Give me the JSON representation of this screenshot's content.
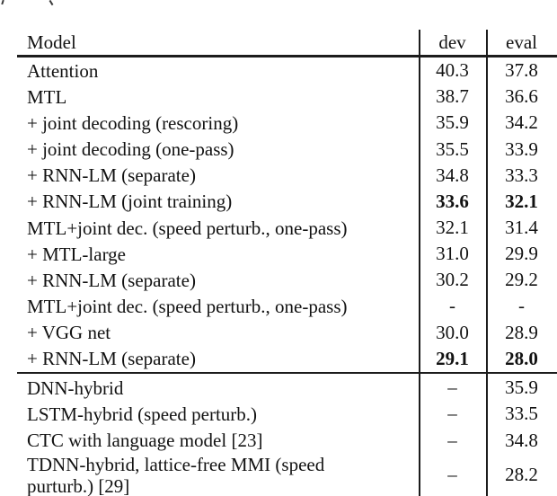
{
  "table": {
    "header": {
      "model": "Model",
      "dev": "dev",
      "eval": "eval"
    },
    "section1": [
      {
        "model": "Attention",
        "dev": "40.3",
        "eval": "37.8",
        "bold": false
      },
      {
        "model": "MTL",
        "dev": "38.7",
        "eval": "36.6",
        "bold": false
      },
      {
        "model": "+ joint decoding (rescoring)",
        "dev": "35.9",
        "eval": "34.2",
        "bold": false
      },
      {
        "model": "+ joint decoding (one-pass)",
        "dev": "35.5",
        "eval": "33.9",
        "bold": false
      },
      {
        "model": "+ RNN-LM (separate)",
        "dev": "34.8",
        "eval": "33.3",
        "bold": false
      },
      {
        "model": "+ RNN-LM (joint training)",
        "dev": "33.6",
        "eval": "32.1",
        "bold": true
      },
      {
        "model": "MTL+joint dec. (speed perturb., one-pass)",
        "dev": "32.1",
        "eval": "31.4",
        "bold": false
      },
      {
        "model": "+ MTL-large",
        "dev": "31.0",
        "eval": "29.9",
        "bold": false
      },
      {
        "model": "+ RNN-LM (separate)",
        "dev": "30.2",
        "eval": "29.2",
        "bold": false
      },
      {
        "model": "MTL+joint dec. (speed perturb., one-pass)",
        "dev": "-",
        "eval": "-",
        "bold": false
      },
      {
        "model": "+ VGG net",
        "dev": "30.0",
        "eval": "28.9",
        "bold": false
      },
      {
        "model": "+ RNN-LM (separate)",
        "dev": "29.1",
        "eval": "28.0",
        "bold": true
      }
    ],
    "section2": [
      {
        "model": "DNN-hybrid",
        "dev": "–",
        "eval": "35.9",
        "bold": false
      },
      {
        "model": "LSTM-hybrid (speed perturb.)",
        "dev": "–",
        "eval": "33.5",
        "bold": false
      },
      {
        "model": "CTC with language model [23]",
        "dev": "–",
        "eval": "34.8",
        "bold": false
      },
      {
        "model": "TDNN-hybrid, lattice-free MMI (speed\npurturb.) [29]",
        "dev": "–",
        "eval": "28.2",
        "bold": false,
        "tall": true
      }
    ]
  },
  "colors": {
    "background": "#ffffff",
    "text": "#121212",
    "rule": "#1c1c1c"
  }
}
